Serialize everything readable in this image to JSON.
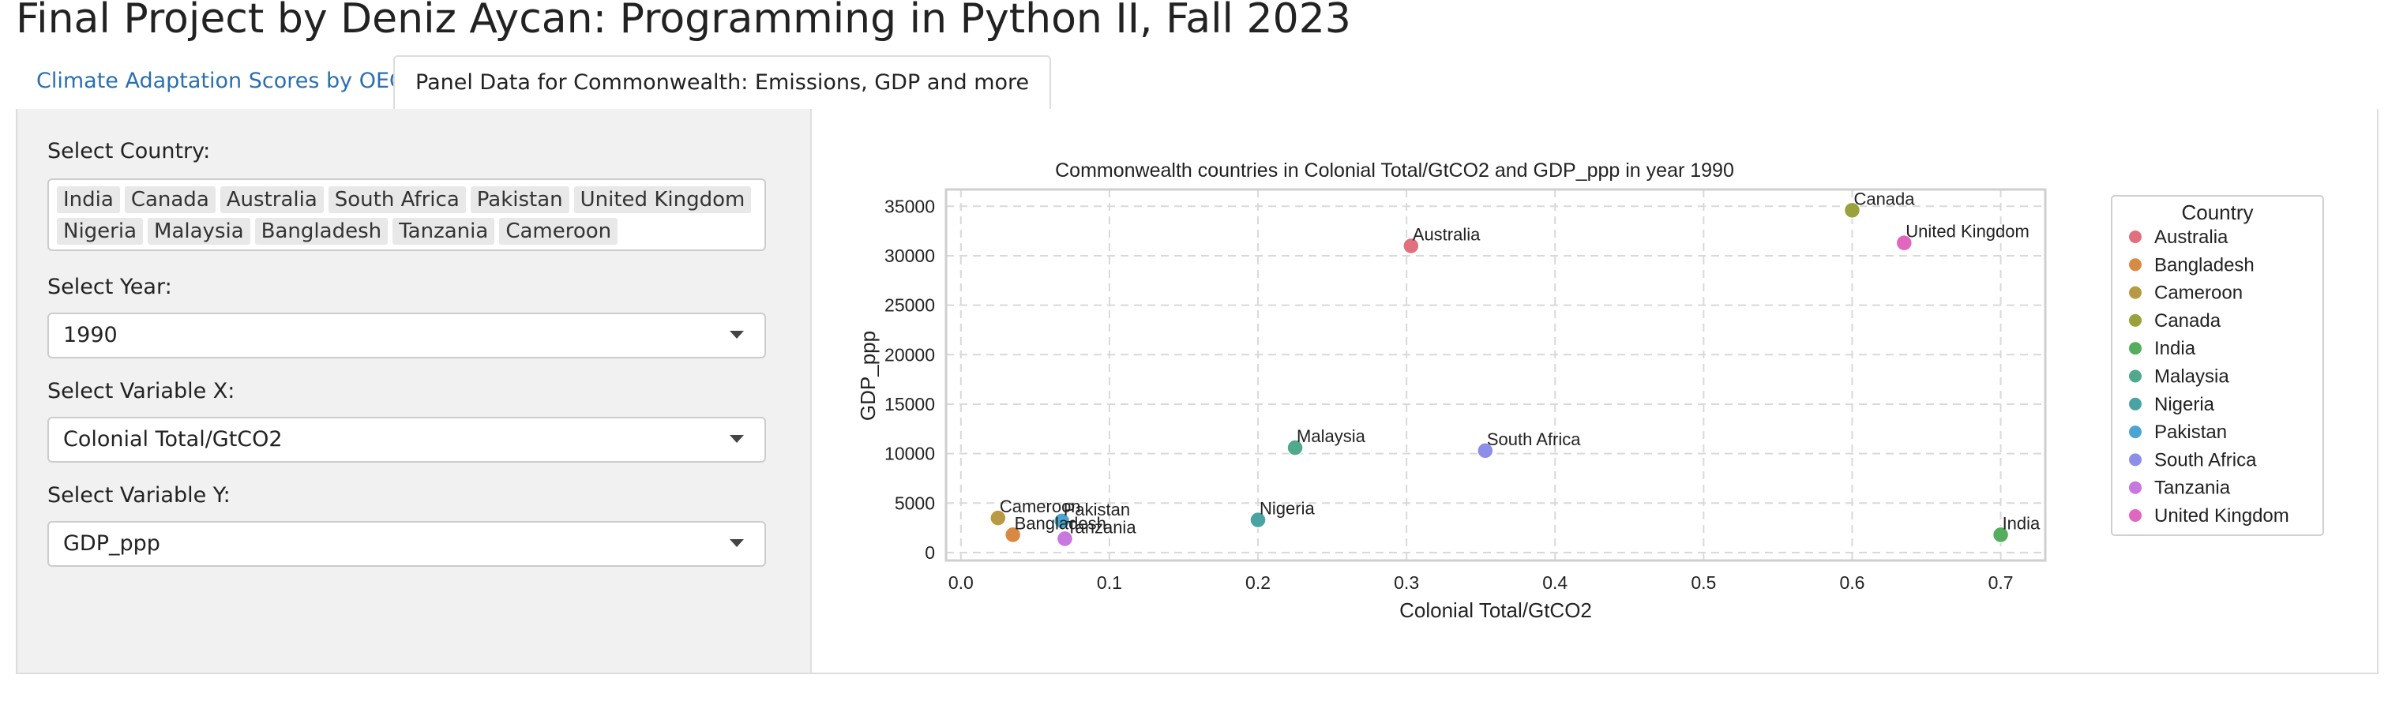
{
  "app": {
    "title": "Final Project by Deniz Aycan: Programming in Python II, Fall 2023"
  },
  "tabs": [
    {
      "label": "Climate Adaptation Scores by OECD",
      "active": false
    },
    {
      "label": "Panel Data for Commonwealth: Emissions, GDP and more",
      "active": true
    }
  ],
  "sidebar": {
    "country_label": "Select Country:",
    "countries": [
      "India",
      "Canada",
      "Australia",
      "South Africa",
      "Pakistan",
      "United Kingdom",
      "Nigeria",
      "Malaysia",
      "Bangladesh",
      "Tanzania",
      "Cameroon"
    ],
    "year_label": "Select Year:",
    "year_value": "1990",
    "x_label": "Select Variable X:",
    "x_value": "Colonial Total/GtCO2",
    "y_label": "Select Variable Y:",
    "y_value": "GDP_ppp"
  },
  "chart_data": {
    "type": "scatter",
    "title": "Commonwealth countries in Colonial Total/GtCO2 and GDP_ppp in year 1990",
    "xlabel": "Colonial Total/GtCO2",
    "ylabel": "GDP_ppp",
    "xlim": [
      -0.01,
      0.73
    ],
    "ylim": [
      -800,
      36700
    ],
    "xticks": [
      0.0,
      0.1,
      0.2,
      0.3,
      0.4,
      0.5,
      0.6,
      0.7
    ],
    "xtick_labels": [
      "0.0",
      "0.1",
      "0.2",
      "0.3",
      "0.4",
      "0.5",
      "0.6",
      "0.7"
    ],
    "yticks": [
      0,
      5000,
      10000,
      15000,
      20000,
      25000,
      30000,
      35000
    ],
    "ytick_labels": [
      "0",
      "5000",
      "10000",
      "15000",
      "20000",
      "25000",
      "30000",
      "35000"
    ],
    "grid": true,
    "legend": {
      "title": "Country",
      "placement": "right"
    },
    "series": [
      {
        "name": "Australia",
        "color": "#e0707e",
        "x": 0.303,
        "y": 31000
      },
      {
        "name": "Bangladesh",
        "color": "#d98a42",
        "x": 0.035,
        "y": 1800
      },
      {
        "name": "Cameroon",
        "color": "#b89a45",
        "x": 0.025,
        "y": 3500
      },
      {
        "name": "Canada",
        "color": "#9aa23e",
        "x": 0.6,
        "y": 34600
      },
      {
        "name": "India",
        "color": "#55ad5f",
        "x": 0.7,
        "y": 1800
      },
      {
        "name": "Malaysia",
        "color": "#4fa98a",
        "x": 0.225,
        "y": 10600
      },
      {
        "name": "Nigeria",
        "color": "#4aa3a3",
        "x": 0.2,
        "y": 3300
      },
      {
        "name": "Pakistan",
        "color": "#4aa5d3",
        "x": 0.068,
        "y": 3200
      },
      {
        "name": "South Africa",
        "color": "#8d8ee8",
        "x": 0.353,
        "y": 10300
      },
      {
        "name": "Tanzania",
        "color": "#c877e0",
        "x": 0.07,
        "y": 1400
      },
      {
        "name": "United Kingdom",
        "color": "#e066c0",
        "x": 0.635,
        "y": 31300
      }
    ]
  }
}
